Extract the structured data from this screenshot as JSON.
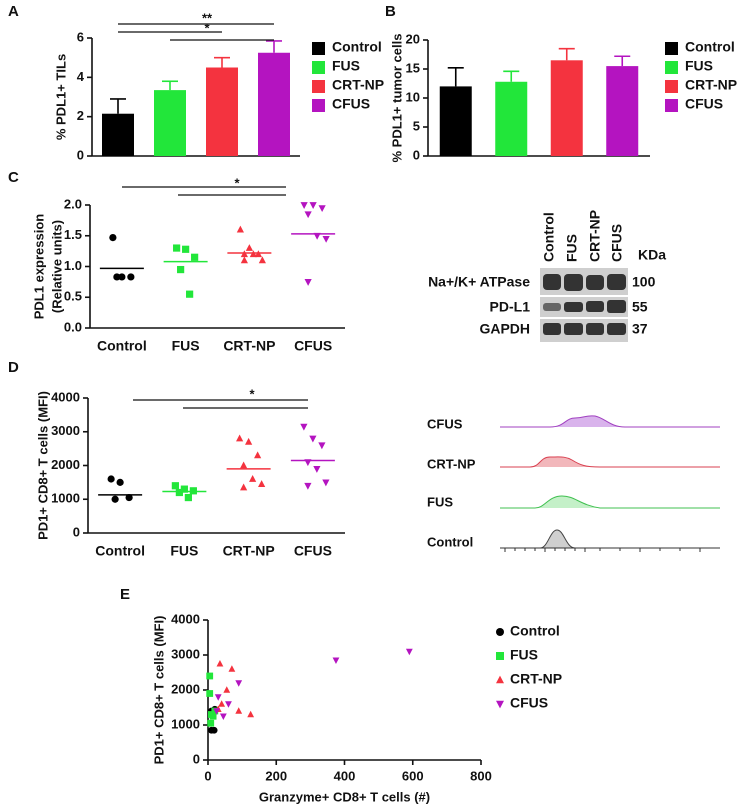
{
  "panels": [
    "A",
    "B",
    "C",
    "D",
    "E"
  ],
  "chart_data": [
    {
      "type": "bar",
      "ylabel": "% PDL1+ TILs",
      "categories": [
        "Control",
        "FUS",
        "CRT-NP",
        "CFUS"
      ],
      "values": [
        2.15,
        3.35,
        4.5,
        5.25
      ],
      "errors": [
        0.75,
        0.45,
        0.5,
        0.6
      ],
      "colors": [
        "#000000",
        "#22e63a",
        "#f4333f",
        "#b414c0"
      ],
      "ylim": [
        0,
        6
      ],
      "yticks": [
        0,
        2,
        4,
        6
      ],
      "legend": "right",
      "annotations": [
        "**",
        "*"
      ]
    },
    {
      "type": "bar",
      "ylabel": "% PDL1+ tumor cells",
      "categories": [
        "Control",
        "FUS",
        "CRT-NP",
        "CFUS"
      ],
      "values": [
        12,
        12.8,
        16.5,
        15.5
      ],
      "errors": [
        3.2,
        1.8,
        2,
        1.7
      ],
      "colors": [
        "#000000",
        "#22e63a",
        "#f4333f",
        "#b414c0"
      ],
      "ylim": [
        0,
        20
      ],
      "yticks": [
        0,
        5,
        10,
        15,
        20
      ],
      "legend": "right"
    },
    {
      "type": "dotplot",
      "ylabel": [
        "PDL1 expression",
        "(Relative units)"
      ],
      "series": [
        {
          "name": "Control",
          "color": "#000000",
          "marker": "circle",
          "values": [
            1.47,
            0.83,
            0.83,
            0.83
          ],
          "center": 0.97
        },
        {
          "name": "FUS",
          "color": "#22e63a",
          "marker": "square",
          "values": [
            1.3,
            1.28,
            1.15,
            0.95,
            0.55
          ],
          "center": 1.08
        },
        {
          "name": "CRT-NP",
          "color": "#f4333f",
          "marker": "triangle",
          "values": [
            1.6,
            1.3,
            1.2,
            1.2,
            1.2,
            1.1,
            1.1
          ],
          "center": 1.22
        },
        {
          "name": "CFUS",
          "color": "#b414c0",
          "marker": "triangle-down",
          "values": [
            2.0,
            2.0,
            1.95,
            1.85,
            1.5,
            1.45,
            0.75
          ],
          "center": 1.53
        }
      ],
      "ylim": [
        0,
        2
      ],
      "yticks": [
        {
          "value": 0,
          "label": "0.0"
        },
        {
          "value": 0.5,
          "label": "0.5"
        },
        {
          "value": 1,
          "label": "1.0"
        },
        {
          "value": 1.5,
          "label": "1.5"
        },
        {
          "value": 2,
          "label": "2.0"
        }
      ],
      "annotations": [
        "*"
      ]
    },
    {
      "type": "dotplot",
      "ylabel": [
        "PD1+ CD8+ T cells (MFI)"
      ],
      "series": [
        {
          "name": "Control",
          "color": "#000000",
          "marker": "circle",
          "values": [
            1600,
            1500,
            1050,
            1000
          ],
          "center": 1130
        },
        {
          "name": "FUS",
          "color": "#22e63a",
          "marker": "square",
          "values": [
            1400,
            1300,
            1250,
            1200,
            1050
          ],
          "center": 1230
        },
        {
          "name": "CRT-NP",
          "color": "#f4333f",
          "marker": "triangle",
          "values": [
            2800,
            2700,
            2300,
            2000,
            1600,
            1450,
            1350
          ],
          "center": 1900
        },
        {
          "name": "CFUS",
          "color": "#b414c0",
          "marker": "triangle-down",
          "values": [
            3150,
            2800,
            2600,
            2100,
            1900,
            1500,
            1400
          ],
          "center": 2150
        }
      ],
      "ylim": [
        0,
        4000
      ],
      "yticks": [
        0,
        1000,
        2000,
        3000,
        4000
      ],
      "annotations": [
        "*"
      ]
    },
    {
      "type": "scatter",
      "xlabel": "Granzyme+ CD8+ T cells (#)",
      "ylabel": [
        "PD1+ CD8+ T cells (MFI)"
      ],
      "series": [
        {
          "name": "Control",
          "color": "#000000",
          "marker": "circle",
          "x": [
            10,
            15,
            20,
            10,
            18
          ],
          "values": [
            1400,
            1350,
            1450,
            850,
            850
          ]
        },
        {
          "name": "FUS",
          "color": "#22e63a",
          "marker": "square",
          "x": [
            5,
            5,
            10,
            15,
            8,
            20
          ],
          "values": [
            2400,
            1900,
            1300,
            1250,
            1050,
            1400
          ]
        },
        {
          "name": "CRT-NP",
          "color": "#f4333f",
          "marker": "triangle",
          "x": [
            35,
            70,
            55,
            40,
            90,
            125,
            30
          ],
          "values": [
            2750,
            2600,
            2000,
            1600,
            1400,
            1300,
            1450
          ]
        },
        {
          "name": "CFUS",
          "color": "#b414c0",
          "marker": "triangle-down",
          "x": [
            375,
            590,
            90,
            30,
            45,
            25,
            60
          ],
          "values": [
            2850,
            3100,
            2200,
            1800,
            1250,
            1400,
            1600
          ]
        }
      ],
      "xlim": [
        0,
        800
      ],
      "xticks": [
        0,
        200,
        400,
        600,
        800
      ],
      "ylim": [
        0,
        4000
      ],
      "yticks": [
        0,
        1000,
        2000,
        3000,
        4000
      ],
      "legend": "right"
    }
  ],
  "blot": {
    "lanes": [
      "Control",
      "FUS",
      "CRT-NP",
      "CFUS"
    ],
    "unit": "KDa",
    "rows": [
      {
        "label": "Na+/K+ ATPase",
        "mw": "100"
      },
      {
        "label": "PD-L1",
        "mw": "55"
      },
      {
        "label": "GAPDH",
        "mw": "37"
      }
    ]
  },
  "flow": {
    "labels": [
      "CFUS",
      "CRT-NP",
      "FUS",
      "Control"
    ]
  }
}
